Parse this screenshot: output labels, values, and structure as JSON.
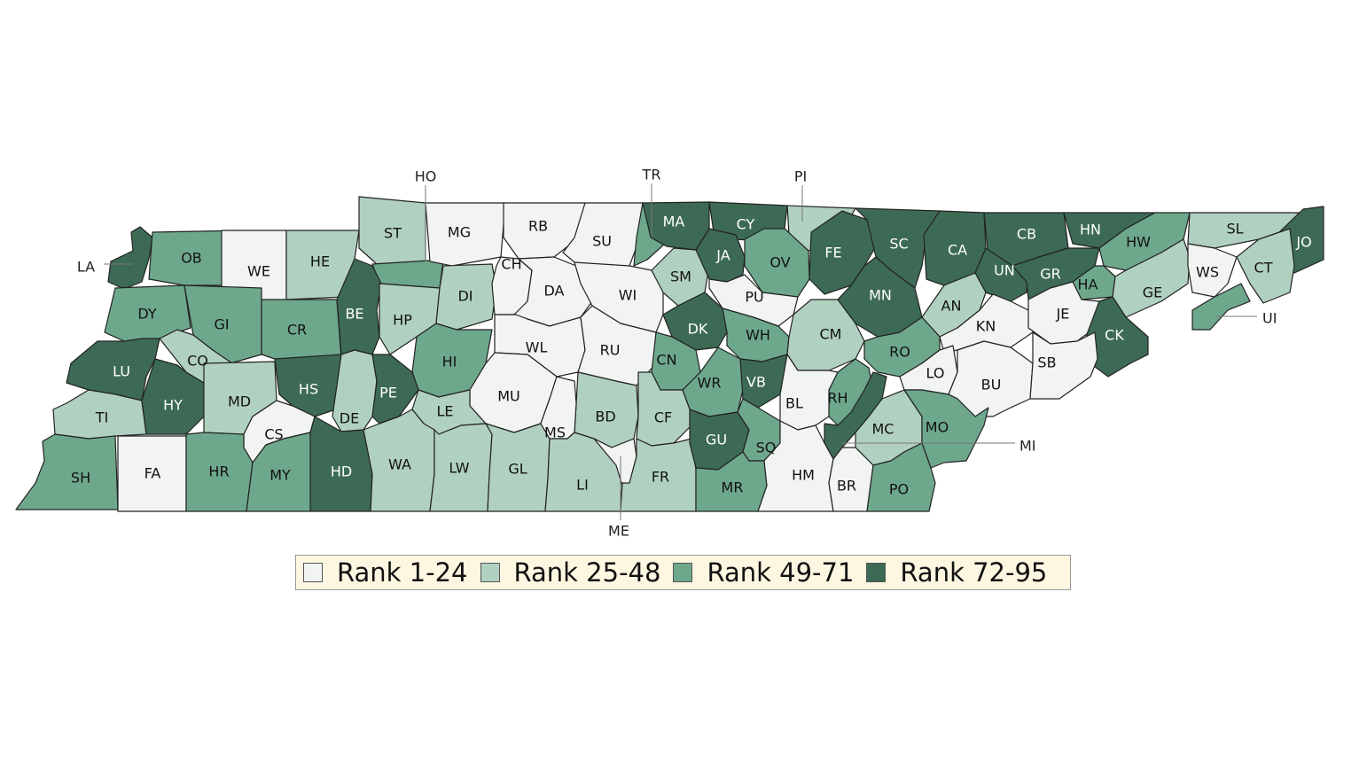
{
  "legend": [
    {
      "label": "Rank 1-24",
      "color": "#f1f4f2"
    },
    {
      "label": "Rank 25-48",
      "color": "#b1d1c0"
    },
    {
      "label": "Rank 49-71",
      "color": "#6ea88c"
    },
    {
      "label": "Rank 72-95",
      "color": "#3d6a55"
    }
  ],
  "counties": [
    {
      "code": "LA",
      "tier": 4
    },
    {
      "code": "OB",
      "tier": 3
    },
    {
      "code": "WE",
      "tier": 1
    },
    {
      "code": "HE",
      "tier": 2
    },
    {
      "code": "ST",
      "tier": 2
    },
    {
      "code": "HO",
      "tier": 3
    },
    {
      "code": "MG",
      "tier": 1
    },
    {
      "code": "RB",
      "tier": 1
    },
    {
      "code": "SU",
      "tier": 1
    },
    {
      "code": "TR",
      "tier": 3
    },
    {
      "code": "MA",
      "tier": 4
    },
    {
      "code": "CY",
      "tier": 4
    },
    {
      "code": "PI",
      "tier": 2
    },
    {
      "code": "FE",
      "tier": 4
    },
    {
      "code": "SC",
      "tier": 4
    },
    {
      "code": "CA",
      "tier": 4
    },
    {
      "code": "CB",
      "tier": 4
    },
    {
      "code": "HN",
      "tier": 4
    },
    {
      "code": "HW",
      "tier": 3
    },
    {
      "code": "SL",
      "tier": 2
    },
    {
      "code": "JO",
      "tier": 4
    },
    {
      "code": "DY",
      "tier": 3
    },
    {
      "code": "GI",
      "tier": 3
    },
    {
      "code": "CR",
      "tier": 3
    },
    {
      "code": "BE",
      "tier": 4
    },
    {
      "code": "HP",
      "tier": 2
    },
    {
      "code": "DI",
      "tier": 2
    },
    {
      "code": "CH",
      "tier": 1
    },
    {
      "code": "DA",
      "tier": 1
    },
    {
      "code": "WI",
      "tier": 1
    },
    {
      "code": "SM",
      "tier": 2
    },
    {
      "code": "JA",
      "tier": 4
    },
    {
      "code": "OV",
      "tier": 3
    },
    {
      "code": "PU",
      "tier": 1
    },
    {
      "code": "MN",
      "tier": 4
    },
    {
      "code": "UN",
      "tier": 4
    },
    {
      "code": "GR",
      "tier": 4
    },
    {
      "code": "HA",
      "tier": 3
    },
    {
      "code": "GE",
      "tier": 2
    },
    {
      "code": "WS",
      "tier": 1
    },
    {
      "code": "CT",
      "tier": 2
    },
    {
      "code": "UI",
      "tier": 3
    },
    {
      "code": "LU",
      "tier": 4
    },
    {
      "code": "CO",
      "tier": 2
    },
    {
      "code": "HS",
      "tier": 4
    },
    {
      "code": "HI",
      "tier": 3
    },
    {
      "code": "WL",
      "tier": 1
    },
    {
      "code": "RU",
      "tier": 1
    },
    {
      "code": "DK",
      "tier": 4
    },
    {
      "code": "WH",
      "tier": 3
    },
    {
      "code": "CM",
      "tier": 2
    },
    {
      "code": "AN",
      "tier": 2
    },
    {
      "code": "KN",
      "tier": 1
    },
    {
      "code": "JE",
      "tier": 1
    },
    {
      "code": "CK",
      "tier": 4
    },
    {
      "code": "TI",
      "tier": 2
    },
    {
      "code": "HY",
      "tier": 4
    },
    {
      "code": "MD",
      "tier": 2
    },
    {
      "code": "DE",
      "tier": 2
    },
    {
      "code": "PE",
      "tier": 4
    },
    {
      "code": "MU",
      "tier": 1
    },
    {
      "code": "CN",
      "tier": 3
    },
    {
      "code": "WR",
      "tier": 3
    },
    {
      "code": "VB",
      "tier": 4
    },
    {
      "code": "RO",
      "tier": 3
    },
    {
      "code": "LO",
      "tier": 1
    },
    {
      "code": "BU",
      "tier": 1
    },
    {
      "code": "SB",
      "tier": 1
    },
    {
      "code": "CS",
      "tier": 1
    },
    {
      "code": "LE",
      "tier": 2
    },
    {
      "code": "BD",
      "tier": 2
    },
    {
      "code": "CF",
      "tier": 2
    },
    {
      "code": "RH",
      "tier": 3
    },
    {
      "code": "BL",
      "tier": 1
    },
    {
      "code": "MI",
      "tier": 4
    },
    {
      "code": "MC",
      "tier": 2
    },
    {
      "code": "MO",
      "tier": 3
    },
    {
      "code": "SH",
      "tier": 3
    },
    {
      "code": "FA",
      "tier": 1
    },
    {
      "code": "HR",
      "tier": 3
    },
    {
      "code": "MY",
      "tier": 3
    },
    {
      "code": "HD",
      "tier": 4
    },
    {
      "code": "WA",
      "tier": 2
    },
    {
      "code": "LW",
      "tier": 2
    },
    {
      "code": "GL",
      "tier": 2
    },
    {
      "code": "MS",
      "tier": 1
    },
    {
      "code": "LI",
      "tier": 2
    },
    {
      "code": "ME",
      "tier": 1
    },
    {
      "code": "FR",
      "tier": 2
    },
    {
      "code": "GU",
      "tier": 4
    },
    {
      "code": "SQ",
      "tier": 3
    },
    {
      "code": "MR",
      "tier": 3
    },
    {
      "code": "HM",
      "tier": 1
    },
    {
      "code": "BR",
      "tier": 1
    },
    {
      "code": "PO",
      "tier": 3
    }
  ]
}
